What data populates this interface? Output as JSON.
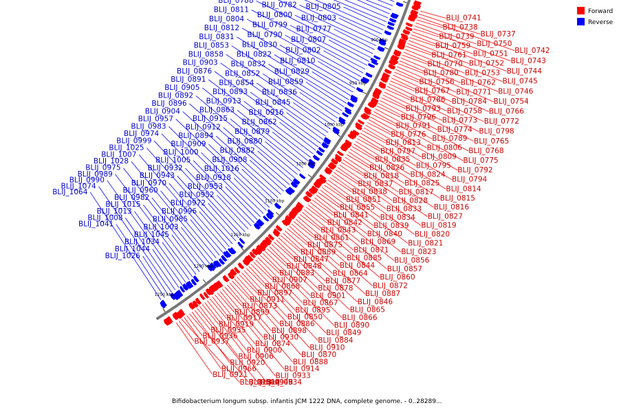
{
  "legend": {
    "forward": {
      "label": "Forward",
      "color": "#ff0000"
    },
    "reverse": {
      "label": "Reverse",
      "color": "#0000ff"
    }
  },
  "caption": "Bifidobacterium longum subsp. infantis JCM 1222 DNA, complete genome. - 0..28289...",
  "ticks": [
    "850 kbp",
    "900 kbp",
    "950 kbp",
    "1000 kbp",
    "1050 kbp",
    "1100 kbp",
    "1150 kbp",
    "1200 kbp",
    "1250 kbp"
  ],
  "forward_labels": [
    "BLIJ_0741",
    "BLIJ_0737",
    "BLIJ_0742",
    "BLIJ_0738",
    "BLIJ_0750",
    "BLIJ_0743",
    "BLIJ_0739",
    "BLIJ_0751",
    "BLIJ_0744",
    "BLIJ_0759",
    "BLIJ_0752",
    "BLIJ_0745",
    "BLIJ_0761",
    "BLIJ_0753",
    "BLIJ_0746",
    "BLIJ_0770",
    "BLIJ_0762",
    "BLIJ_0754",
    "BLIJ_0780",
    "BLIJ_0771",
    "BLIJ_0766",
    "BLIJ_0756",
    "BLIJ_0784",
    "BLIJ_0772",
    "BLIJ_0767",
    "BLIJ_0758",
    "BLIJ_0798",
    "BLIJ_0786",
    "BLIJ_0773",
    "BLIJ_0765",
    "BLIJ_0793",
    "BLIJ_0774",
    "BLIJ_0768",
    "BLIJ_0796",
    "BLIJ_0789",
    "BLIJ_0775",
    "BLIJ_0791",
    "BLIJ_0806",
    "BLIJ_0792",
    "BLIJ_0776",
    "BLIJ_0809",
    "BLIJ_0794",
    "BLIJ_0813",
    "BLIJ_0795",
    "BLIJ_0814",
    "BLIJ_0797",
    "BLIJ_0824",
    "BLIJ_0815",
    "BLIJ_0835",
    "BLIJ_0825",
    "BLIJ_0816",
    "BLIJ_0826",
    "BLIJ_0817",
    "BLIJ_0827",
    "BLIJ_0818",
    "BLIJ_0828",
    "BLIJ_0819",
    "BLIJ_0837",
    "BLIJ_0833",
    "BLIJ_0820",
    "BLIJ_0838",
    "BLIJ_0834",
    "BLIJ_0821",
    "BLIJ_0851",
    "BLIJ_0839",
    "BLIJ_0823",
    "BLIJ_0855",
    "BLIJ_0840",
    "BLIJ_0856",
    "BLIJ_0841",
    "BLIJ_0869",
    "BLIJ_0857",
    "BLIJ_0842",
    "BLIJ_0871",
    "BLIJ_0860",
    "BLIJ_0843",
    "BLIJ_0885",
    "BLIJ_0872",
    "BLIJ_0861",
    "BLIJ_0844",
    "BLIJ_0887",
    "BLIJ_0875",
    "BLIJ_0864",
    "BLIJ_0846",
    "BLIJ_0889",
    "BLIJ_0877",
    "BLIJ_0865",
    "BLIJ_0847",
    "BLIJ_0878",
    "BLIJ_0866",
    "BLIJ_0848",
    "BLIJ_0901",
    "BLIJ_0890",
    "BLIJ_0883",
    "BLIJ_0867",
    "BLIJ_0849",
    "BLIJ_0907",
    "BLIJ_0895",
    "BLIJ_0884",
    "BLIJ_0868",
    "BLIJ_0850",
    "BLIJ_0910",
    "BLIJ_0897",
    "BLIJ_0886",
    "BLIJ_0870",
    "BLIJ_0911",
    "BLIJ_0898",
    "BLIJ_0888",
    "BLIJ_0873",
    "BLIJ_0930",
    "BLIJ_0914",
    "BLIJ_0899",
    "BLIJ_0874",
    "BLIJ_0933",
    "BLIJ_0917",
    "BLIJ_0900",
    "BLIJ_0934",
    "BLIJ_0919",
    "BLIJ_0906",
    "BLIJ_0948",
    "BLIJ_0935",
    "BLIJ_0920",
    "BLIJ_0949",
    "BLIJ_0936",
    "BLIJ_0966",
    "BLIJ_0950",
    "BLIJ_0937",
    "BLIJ_0921"
  ],
  "reverse_labels": [
    "BLIJ_0787",
    "BLIJ_0763",
    "BLIJ_0755",
    "BLIJ_0808",
    "BLIJ_0785",
    "BLIJ_0760",
    "BLIJ_0805",
    "BLIJ_0783",
    "BLIJ_0764",
    "BLIJ_0803",
    "BLIJ_0782",
    "BLIJ_0801",
    "BLIJ_0777",
    "BLIJ_0800",
    "BLIJ_0788",
    "BLIJ_0807",
    "BLIJ_0799",
    "BLIJ_0811",
    "BLIJ_0802",
    "BLIJ_0790",
    "BLIJ_0804",
    "BLIJ_0810",
    "BLIJ_0830",
    "BLIJ_0812",
    "BLIJ_0829",
    "BLIJ_0822",
    "BLIJ_0831",
    "BLIJ_0859",
    "BLIJ_0832",
    "BLIJ_0853",
    "BLIJ_0836",
    "BLIJ_0852",
    "BLIJ_0858",
    "BLIJ_0845",
    "BLIJ_0854",
    "BLIJ_0903",
    "BLIJ_0916",
    "BLIJ_0893",
    "BLIJ_0876",
    "BLIJ_0862",
    "BLIJ_0913",
    "BLIJ_0891",
    "BLIJ_0879",
    "BLIJ_0863",
    "BLIJ_0905",
    "BLIJ_0880",
    "BLIJ_0915",
    "BLIJ_0892",
    "BLIJ_0882",
    "BLIJ_0912",
    "BLIJ_0896",
    "BLIJ_0908",
    "BLIJ_0894",
    "BLIJ_0904",
    "BLIJ_1016",
    "BLIJ_0909",
    "BLIJ_0957",
    "BLIJ_0918",
    "BLIJ_1000",
    "BLIJ_0983",
    "BLIJ_0953",
    "BLIJ_1005",
    "BLIJ_0974",
    "BLIJ_0952",
    "BLIJ_0932",
    "BLIJ_0999",
    "BLIJ_0972",
    "BLIJ_0943",
    "BLIJ_1025",
    "BLIJ_0996",
    "BLIJ_0970",
    "BLIJ_1007",
    "BLIJ_0985",
    "BLIJ_0960",
    "BLIJ_1028",
    "BLIJ_1003",
    "BLIJ_0982",
    "BLIJ_0975",
    "BLIJ_1045",
    "BLIJ_1015",
    "BLIJ_0989",
    "BLIJ_1034",
    "BLIJ_1013",
    "BLIJ_0990",
    "BLIJ_1044",
    "BLIJ_1008",
    "BLIJ_1074",
    "BLIJ_1026",
    "BLIJ_1041",
    "BLIJ_1064"
  ]
}
